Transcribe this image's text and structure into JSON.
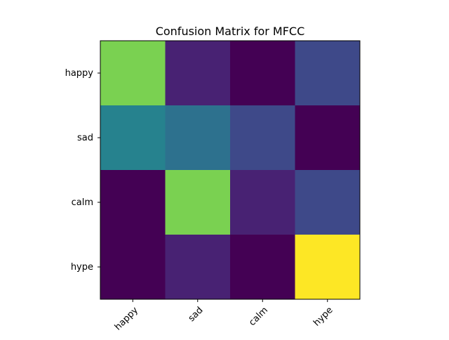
{
  "chart_data": {
    "type": "heatmap",
    "title": "Confusion Matrix for MFCC",
    "xlabel": "",
    "ylabel": "",
    "x_categories": [
      "happy",
      "sad",
      "calm",
      "hype"
    ],
    "y_categories": [
      "happy",
      "sad",
      "calm",
      "hype"
    ],
    "colormap": "viridis",
    "value_range": [
      0,
      1
    ],
    "values": [
      [
        0.75,
        0.12,
        0.0,
        0.25
      ],
      [
        0.5,
        0.42,
        0.25,
        0.0
      ],
      [
        0.0,
        0.75,
        0.12,
        0.25
      ],
      [
        0.0,
        0.12,
        0.0,
        1.0
      ]
    ],
    "colorbar": false,
    "grid": false,
    "legend": "none"
  }
}
